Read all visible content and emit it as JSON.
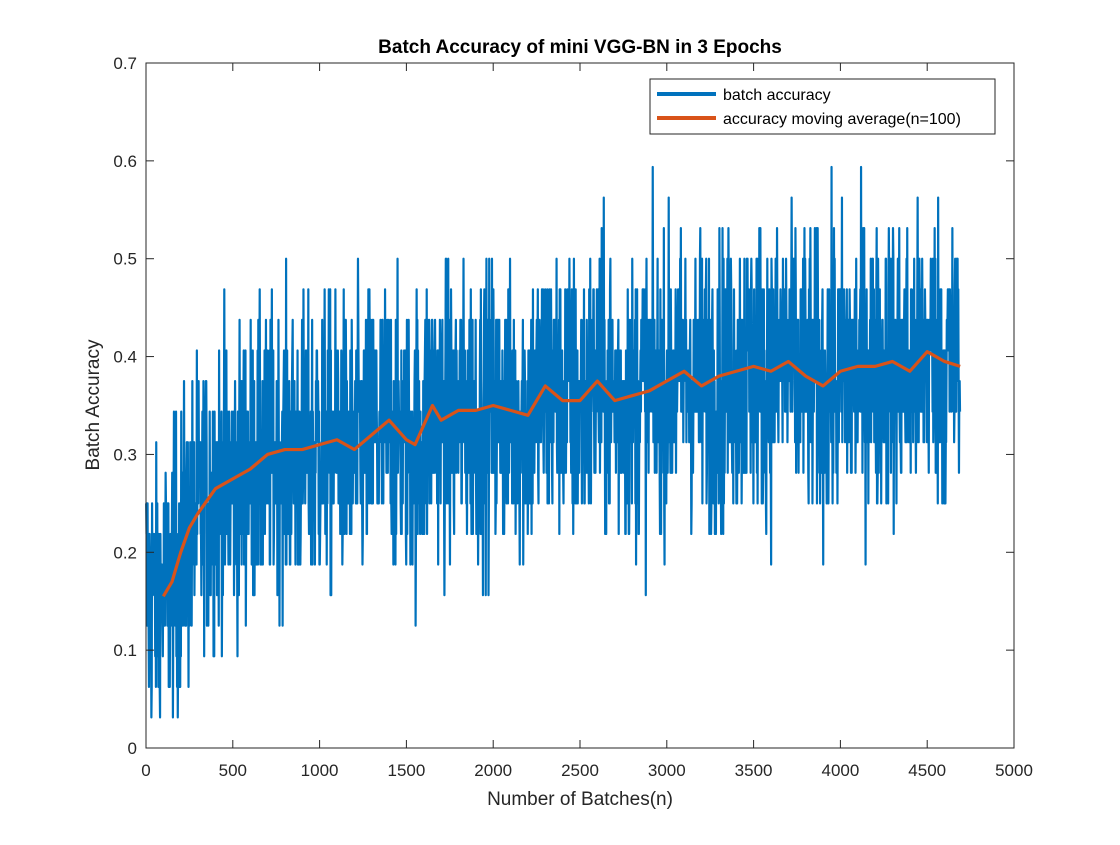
{
  "chart_data": {
    "type": "line",
    "title": "Batch Accuracy of mini VGG-BN in 3 Epochs",
    "xlabel": "Number of Batches(n)",
    "ylabel": "Batch Accuracy",
    "xlim": [
      0,
      5000
    ],
    "ylim": [
      0,
      0.7
    ],
    "xticks": [
      0,
      500,
      1000,
      1500,
      2000,
      2500,
      3000,
      3500,
      4000,
      4500,
      5000
    ],
    "xtick_labels": [
      "0",
      "500",
      "1000",
      "1500",
      "2000",
      "2500",
      "3000",
      "3500",
      "4000",
      "4500",
      "5000"
    ],
    "yticks": [
      0,
      0.1,
      0.2,
      0.3,
      0.4,
      0.5,
      0.6,
      0.7
    ],
    "ytick_labels": [
      "0",
      "0.1",
      "0.2",
      "0.3",
      "0.4",
      "0.5",
      "0.6",
      "0.7"
    ],
    "grid": false,
    "legend_position": "top-right",
    "series": [
      {
        "name": "batch accuracy",
        "color": "#0072BD",
        "x_start": 1,
        "x_end": 4690,
        "value_step": 0.03125,
        "envelope": {
          "x": [
            1,
            100,
            200,
            300,
            500,
            700,
            1000,
            1500,
            2000,
            2500,
            3000,
            3500,
            4000,
            4500,
            4690
          ],
          "low": [
            0.031,
            0.031,
            0.031,
            0.094,
            0.094,
            0.125,
            0.125,
            0.125,
            0.125,
            0.156,
            0.156,
            0.156,
            0.156,
            0.156,
            0.156
          ],
          "high": [
            0.313,
            0.313,
            0.406,
            0.5,
            0.5,
            0.531,
            0.531,
            0.563,
            0.594,
            0.594,
            0.625,
            0.594,
            0.625,
            0.625,
            0.625
          ]
        }
      },
      {
        "name": "accuracy moving average(n=100)",
        "color": "#D95319",
        "x": [
          100,
          150,
          200,
          250,
          300,
          400,
          500,
          600,
          700,
          800,
          900,
          1000,
          1100,
          1200,
          1300,
          1400,
          1500,
          1550,
          1600,
          1650,
          1700,
          1800,
          1900,
          2000,
          2100,
          2200,
          2300,
          2400,
          2500,
          2600,
          2700,
          2800,
          2900,
          3000,
          3100,
          3200,
          3300,
          3400,
          3500,
          3600,
          3700,
          3800,
          3900,
          4000,
          4100,
          4200,
          4300,
          4400,
          4500,
          4600,
          4690
        ],
        "values": [
          0.155,
          0.17,
          0.2,
          0.225,
          0.24,
          0.265,
          0.275,
          0.285,
          0.3,
          0.305,
          0.305,
          0.31,
          0.315,
          0.305,
          0.32,
          0.335,
          0.315,
          0.31,
          0.33,
          0.35,
          0.335,
          0.345,
          0.345,
          0.35,
          0.345,
          0.34,
          0.37,
          0.355,
          0.355,
          0.375,
          0.355,
          0.36,
          0.365,
          0.375,
          0.385,
          0.37,
          0.38,
          0.385,
          0.39,
          0.385,
          0.395,
          0.38,
          0.37,
          0.385,
          0.39,
          0.39,
          0.395,
          0.385,
          0.405,
          0.395,
          0.39
        ]
      }
    ]
  }
}
